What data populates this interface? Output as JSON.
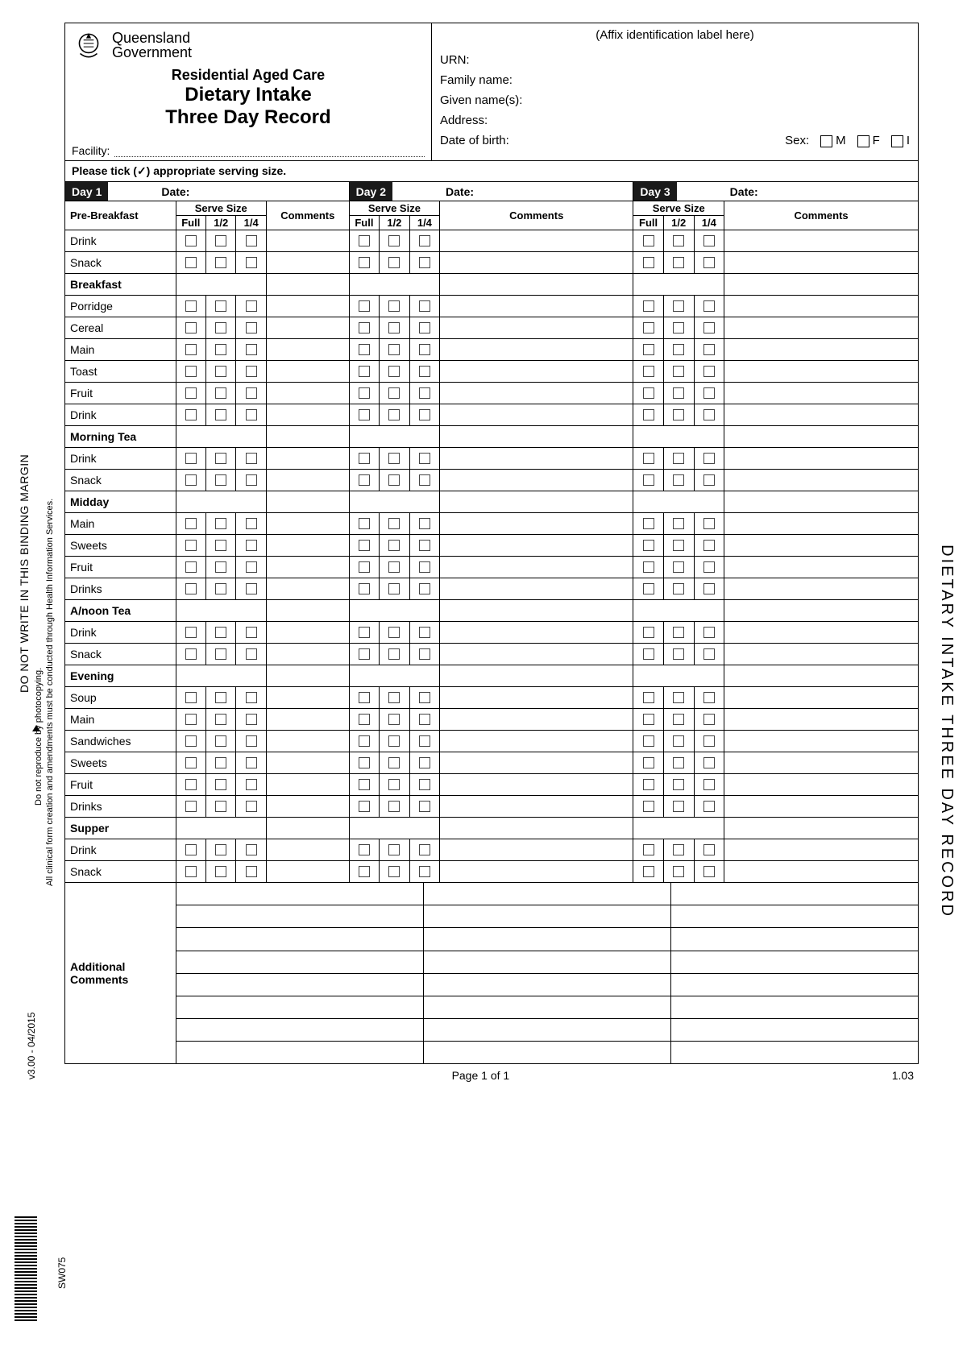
{
  "org": {
    "line1": "Queensland",
    "line2": "Government"
  },
  "titles": {
    "t1": "Residential Aged Care",
    "t2": "Dietary Intake",
    "t3": "Three Day Record"
  },
  "facility_label": "Facility:",
  "affix_label": "(Affix identification label here)",
  "patient_labels": {
    "urn": "URN:",
    "family": "Family name:",
    "given": "Given name(s):",
    "address": "Address:",
    "dob": "Date of birth:",
    "sex": "Sex:",
    "m": "M",
    "f": "F",
    "i": "I"
  },
  "instruction": "Please tick (✓) appropriate serving size.",
  "days": [
    "Day 1",
    "Day 2",
    "Day 3"
  ],
  "date_label": "Date:",
  "pre_breakfast_label": "Pre-Breakfast",
  "serve_size_label": "Serve Size",
  "comments_label": "Comments",
  "size_cols": [
    "Full",
    "1/2",
    "1/4"
  ],
  "sections": [
    {
      "heading": null,
      "items": [
        "Drink",
        "Snack"
      ]
    },
    {
      "heading": "Breakfast",
      "items": [
        "Porridge",
        "Cereal",
        "Main",
        "Toast",
        "Fruit",
        "Drink"
      ]
    },
    {
      "heading": "Morning Tea",
      "items": [
        "Drink",
        "Snack"
      ]
    },
    {
      "heading": "Midday",
      "items": [
        "Main",
        "Sweets",
        "Fruit",
        "Drinks"
      ]
    },
    {
      "heading": "A/noon Tea",
      "items": [
        "Drink",
        "Snack"
      ]
    },
    {
      "heading": "Evening",
      "items": [
        "Soup",
        "Main",
        "Sandwiches",
        "Sweets",
        "Fruit",
        "Drinks"
      ]
    },
    {
      "heading": "Supper",
      "items": [
        "Drink",
        "Snack"
      ]
    }
  ],
  "additional_label": "Additional\nComments",
  "additional_rows": 8,
  "footer": {
    "page": "Page 1 of 1",
    "code": "1.03"
  },
  "side": {
    "binding": "DO NOT WRITE IN THIS BINDING MARGIN",
    "repro": "Do not reproduce by photocopying.",
    "clinical": "All clinical form creation and amendments must be conducted through Health Information Services.",
    "version": "v3.00 - 04/2015",
    "formcode": "SW075",
    "right": "DIETARY INTAKE THREE DAY RECORD"
  },
  "colors": {
    "day_badge_bg": "#1a1a1a",
    "border": "#000000",
    "checkbox": "#444444"
  }
}
